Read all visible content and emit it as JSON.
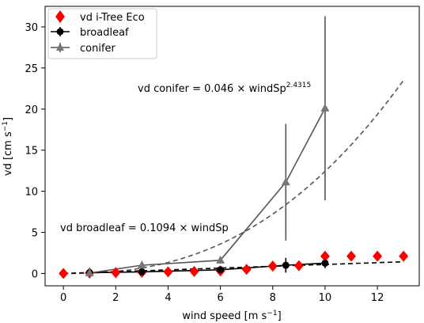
{
  "chart_data": {
    "type": "scatter",
    "title": "",
    "xlabel": "wind speed [m s",
    "xlabel_sup": "−1",
    "xlabel_tail": "]",
    "ylabel": "vd [cm s",
    "ylabel_sup": "−1",
    "ylabel_tail": "]",
    "xlim": [
      -0.7,
      13.6
    ],
    "ylim": [
      -1.5,
      32.5
    ],
    "xticks": [
      0,
      2,
      4,
      6,
      8,
      10,
      12
    ],
    "yticks": [
      0,
      5,
      10,
      15,
      20,
      25,
      30
    ],
    "grid": false,
    "legend_position": "top-left",
    "series": [
      {
        "name": "vd i-Tree Eco",
        "kind": "marker",
        "marker": "diamond",
        "color": "#ff0000",
        "x": [
          0,
          1,
          2,
          3,
          4,
          5,
          6,
          7,
          8,
          9,
          10,
          11,
          12,
          13
        ],
        "y": [
          0.0,
          0.05,
          0.1,
          0.15,
          0.2,
          0.25,
          0.3,
          0.5,
          0.9,
          0.95,
          2.1,
          2.1,
          2.1,
          2.1
        ]
      },
      {
        "name": "broadleaf",
        "kind": "errorbar-line",
        "marker": "circle",
        "color": "#000000",
        "x": [
          1,
          3,
          6,
          8.5,
          10
        ],
        "y": [
          0.1,
          0.2,
          0.45,
          1.0,
          1.25
        ],
        "err": [
          0.2,
          0.3,
          0.4,
          0.9,
          0.6
        ]
      },
      {
        "name": "conifer",
        "kind": "errorbar-line",
        "marker": "triangle",
        "color": "#555555",
        "x": [
          1,
          3,
          6,
          8.5,
          10
        ],
        "y": [
          0.05,
          1.0,
          1.6,
          11.1,
          20.1
        ],
        "err": [
          0.1,
          0.3,
          0.4,
          7.1,
          11.2
        ]
      }
    ],
    "fits": [
      {
        "label": "vd conifer = 0.046 × windSp",
        "label_sup": "2.4315",
        "coef": 0.046,
        "exp": 2.4315,
        "x_range": [
          0,
          13
        ],
        "color": "#555555"
      },
      {
        "label": "vd broadleaf = 0.1094 × windSp",
        "label_sup": "",
        "coef": 0.1094,
        "exp": 1,
        "x_range": [
          0,
          13
        ],
        "color": "#000000"
      }
    ]
  }
}
